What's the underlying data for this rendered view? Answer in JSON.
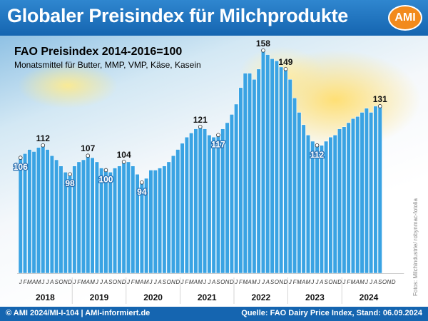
{
  "header": {
    "title": "Globaler Preisindex für Milchprodukte",
    "logo_text": "AMI"
  },
  "footer": {
    "left": "© AMI 2024/MI-I-104 | AMI-informiert.de",
    "right": "Quelle: FAO Dairy Price Index, Stand: 06.09.2024"
  },
  "photo_credit": "Fotos: Milchindustrie/ robynmac-fotolia",
  "colors": {
    "bar": "#3aa3e3",
    "bar_edge": "#ffffff",
    "header_bg": "#1e73be",
    "logo_bg": "#f28a1c"
  },
  "chart_data": {
    "type": "bar",
    "title": "FAO Preisindex  2014-2016=100",
    "subtitle": "Monatsmittel für Butter, MMP, VMP, Käse, Kasein",
    "xlabel": "",
    "ylabel": "",
    "ylim": [
      50,
      160
    ],
    "grid": false,
    "legend": "none",
    "month_letters": [
      "J",
      "F",
      "M",
      "A",
      "M",
      "J",
      "J",
      "A",
      "S",
      "O",
      "N",
      "D"
    ],
    "years": [
      "2018",
      "2019",
      "2020",
      "2021",
      "2022",
      "2023",
      "2024"
    ],
    "values": [
      106,
      108,
      110,
      109,
      111,
      112,
      110,
      107,
      105,
      102,
      99,
      98,
      102,
      104,
      105,
      107,
      106,
      104,
      101,
      100,
      99,
      101,
      102,
      104,
      104,
      102,
      98,
      94,
      96,
      100,
      100,
      101,
      102,
      104,
      107,
      110,
      113,
      116,
      118,
      120,
      121,
      120,
      117,
      116,
      117,
      120,
      123,
      127,
      132,
      140,
      147,
      147,
      144,
      149,
      158,
      156,
      154,
      153,
      150,
      149,
      144,
      135,
      128,
      122,
      117,
      114,
      112,
      112,
      114,
      116,
      117,
      120,
      121,
      123,
      125,
      126,
      128,
      130,
      128,
      131,
      131
    ],
    "annotations": [
      {
        "index": 0,
        "value": "106",
        "position": "below"
      },
      {
        "index": 5,
        "value": "112",
        "position": "above"
      },
      {
        "index": 11,
        "value": "98",
        "position": "below"
      },
      {
        "index": 15,
        "value": "107",
        "position": "above"
      },
      {
        "index": 19,
        "value": "100",
        "position": "below"
      },
      {
        "index": 23,
        "value": "104",
        "position": "above"
      },
      {
        "index": 27,
        "value": "94",
        "position": "below"
      },
      {
        "index": 40,
        "value": "121",
        "position": "above"
      },
      {
        "index": 44,
        "value": "117",
        "position": "below"
      },
      {
        "index": 54,
        "value": "158",
        "position": "above"
      },
      {
        "index": 59,
        "value": "149",
        "position": "above"
      },
      {
        "index": 66,
        "value": "112",
        "position": "below"
      },
      {
        "index": 80,
        "value": "131",
        "position": "above"
      }
    ]
  }
}
